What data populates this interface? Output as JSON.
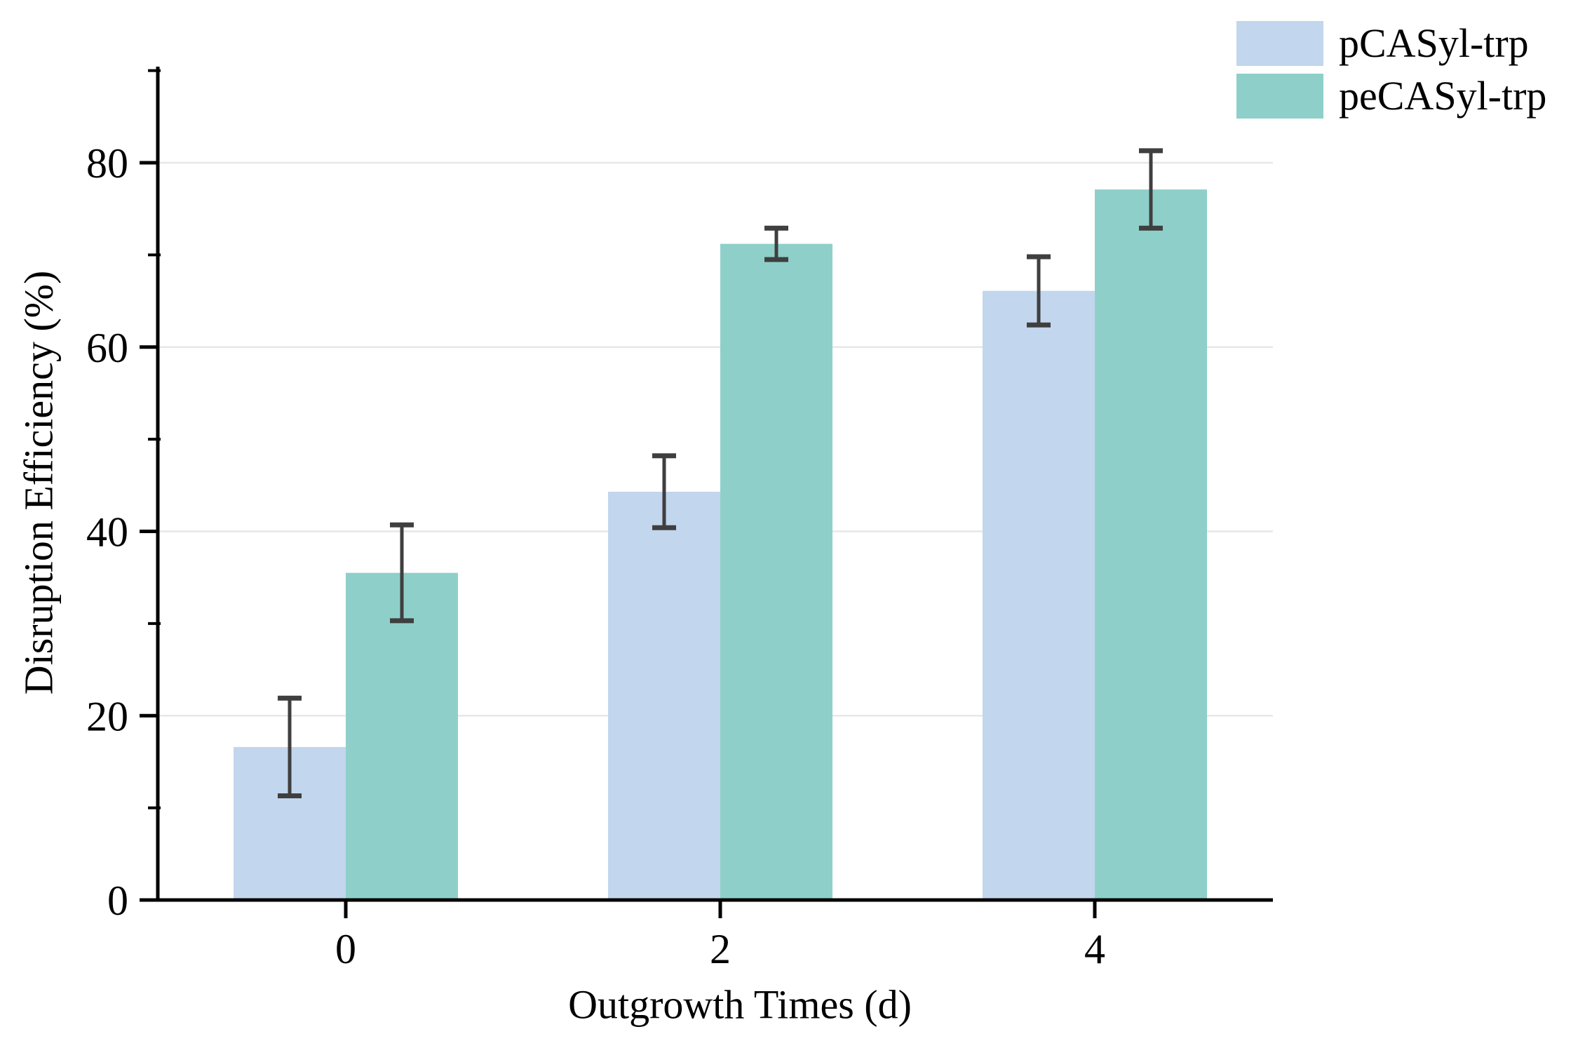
{
  "chart_data": {
    "type": "bar",
    "title": "",
    "xlabel": "Outgrowth Times (d)",
    "ylabel": "Disruption Efficiency (%)",
    "categories": [
      "0",
      "2",
      "4"
    ],
    "series": [
      {
        "name": "pCASyl-trp",
        "color": "#c2d6ed",
        "values": [
          16.6,
          44.3,
          66.1
        ],
        "errors": [
          5.3,
          3.9,
          3.7
        ]
      },
      {
        "name": "peCASyl-trp",
        "color": "#8ed0c9",
        "values": [
          35.5,
          71.2,
          77.1
        ],
        "errors": [
          5.2,
          1.7,
          4.2
        ]
      }
    ],
    "ylim": [
      0,
      90.5
    ],
    "yticks_major": [
      0,
      20,
      40,
      60,
      80
    ],
    "yticks_minor": [
      10,
      30,
      50,
      70,
      90
    ],
    "grid": "horizontal-major",
    "legend_position": "top-right",
    "gridline_color": "#e7e7e7",
    "axis_color": "#000000",
    "error_bar_color": "#3f3f3f"
  }
}
